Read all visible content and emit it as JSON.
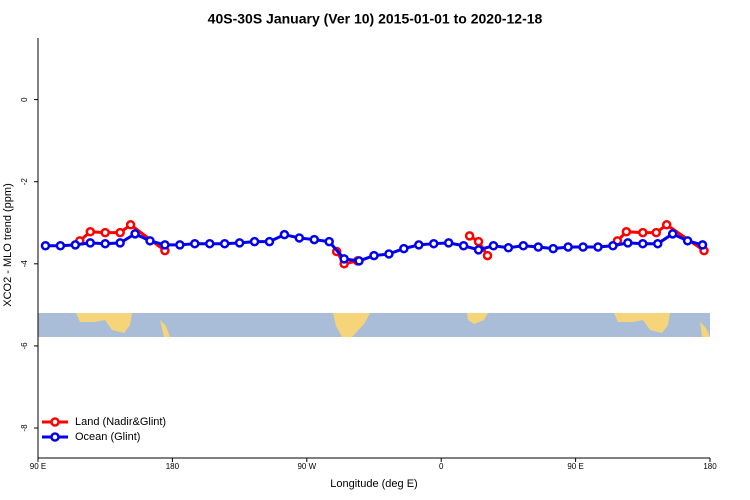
{
  "chart_data": {
    "type": "line",
    "title": "40S-30S January (Ver 10)   2015-01-01 to 2020-12-18",
    "x_label": "Longitude (deg E)",
    "y_label": "XCO2 - MLO trend (ppm)",
    "xlim": [
      90,
      540
    ],
    "xticks": [
      {
        "value": 90,
        "label": "90 E"
      },
      {
        "value": 180,
        "label": "180"
      },
      {
        "value": 270,
        "label": "90 W"
      },
      {
        "value": 360,
        "label": "0"
      },
      {
        "value": 450,
        "label": "90 E"
      },
      {
        "value": 540,
        "label": "180"
      }
    ],
    "ylim": [
      -8.73,
      1.5
    ],
    "yticks": [
      0,
      -2,
      -4,
      -6,
      -8
    ],
    "legend": "bottom-left",
    "series": [
      {
        "name": "Land (Nadir&Glint)",
        "color": "#ff0000",
        "x": [
          118,
          125,
          135,
          145,
          152,
          175,
          null,
          290,
          295,
          304,
          null,
          379,
          385,
          391,
          null,
          478,
          484,
          495,
          504,
          511,
          536
        ],
        "values": [
          -3.44,
          -3.22,
          -3.24,
          -3.24,
          -3.05,
          -3.68,
          null,
          -3.7,
          -4.0,
          -3.93,
          null,
          -3.32,
          -3.46,
          -3.8,
          null,
          -3.44,
          -3.22,
          -3.24,
          -3.24,
          -3.05,
          -3.68
        ]
      },
      {
        "name": "Ocean (Glint)",
        "color": "#0000ee",
        "x": [
          95,
          105,
          115,
          125,
          135,
          145,
          155,
          165,
          175,
          185,
          195,
          205,
          215,
          225,
          235,
          245,
          255,
          265,
          275,
          285,
          295,
          305,
          315,
          325,
          335,
          345,
          355,
          365,
          375,
          385,
          395,
          405,
          415,
          425,
          435,
          445,
          455,
          465,
          475,
          485,
          495,
          505,
          515,
          525,
          535
        ],
        "values": [
          -3.56,
          -3.56,
          -3.54,
          -3.49,
          -3.51,
          -3.49,
          -3.27,
          -3.44,
          -3.54,
          -3.54,
          -3.51,
          -3.51,
          -3.51,
          -3.49,
          -3.46,
          -3.46,
          -3.29,
          -3.37,
          -3.41,
          -3.46,
          -3.88,
          -3.93,
          -3.8,
          -3.76,
          -3.63,
          -3.54,
          -3.51,
          -3.49,
          -3.56,
          -3.66,
          -3.56,
          -3.61,
          -3.56,
          -3.59,
          -3.63,
          -3.59,
          -3.59,
          -3.59,
          -3.56,
          -3.49,
          -3.51,
          -3.51,
          -3.27,
          -3.44,
          -3.54
        ]
      }
    ]
  }
}
